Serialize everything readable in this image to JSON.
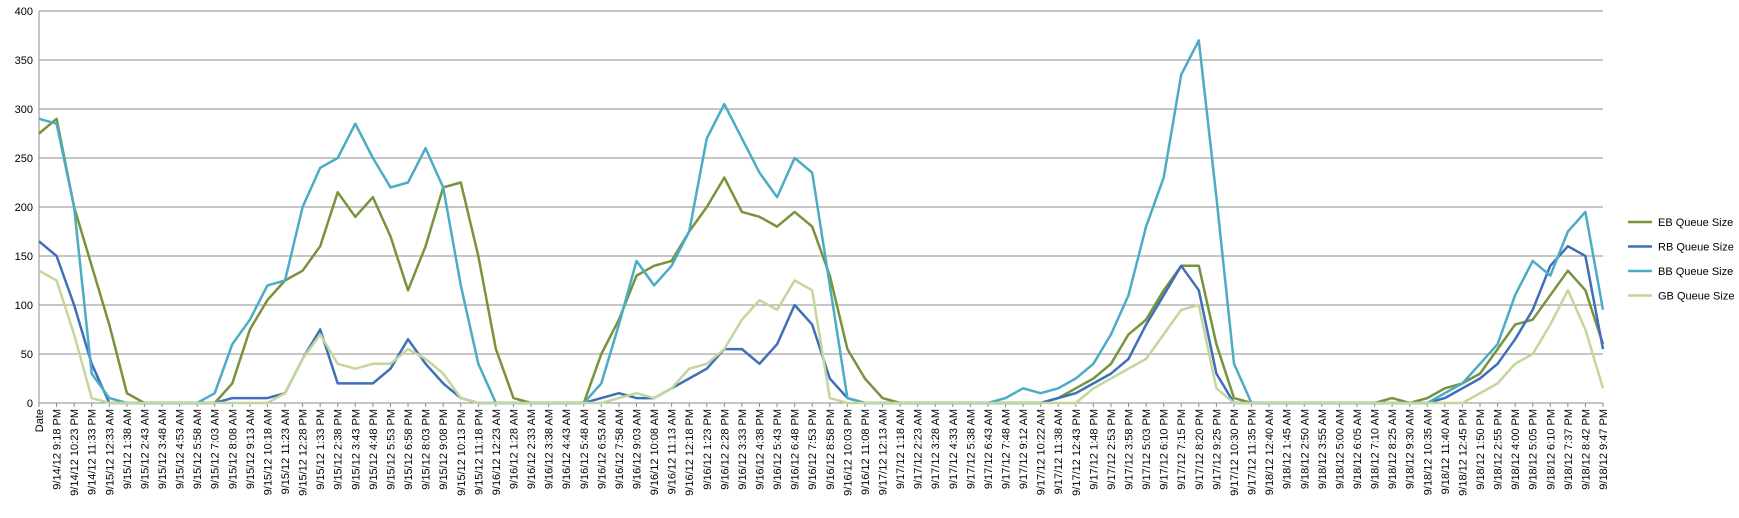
{
  "chart_data": {
    "type": "line",
    "categories": [
      "Date",
      "9/14/12 9:18 PM",
      "9/14/12 10:23 PM",
      "9/14/12 11:33 PM",
      "9/15/12 12:33 AM",
      "9/15/12 1:38 AM",
      "9/15/12 2:43 AM",
      "9/15/12 3:48 AM",
      "9/15/12 4:53 AM",
      "9/15/12 5:58 AM",
      "9/15/12 7:03 AM",
      "9/15/12 8:08 AM",
      "9/15/12 9:13 AM",
      "9/15/12 10:18 AM",
      "9/15/12 11:23 AM",
      "9/15/12 12:28 PM",
      "9/15/12 1:33 PM",
      "9/15/12 2:38 PM",
      "9/15/12 3:43 PM",
      "9/15/12 4:48 PM",
      "9/15/12 5:53 PM",
      "9/15/12 6:58 PM",
      "9/15/12 8:03 PM",
      "9/15/12 9:08 PM",
      "9/15/12 10:13 PM",
      "9/15/12 11:18 PM",
      "9/16/12 12:23 AM",
      "9/16/12 1:28 AM",
      "9/16/12 2:33 AM",
      "9/16/12 3:38 AM",
      "9/16/12 4:43 AM",
      "9/16/12 5:48 AM",
      "9/16/12 6:53 AM",
      "9/16/12 7:58 AM",
      "9/16/12 9:03 AM",
      "9/16/12 10:08 AM",
      "9/16/12 11:13 AM",
      "9/16/12 12:18 PM",
      "9/16/12 1:23 PM",
      "9/16/12 2:28 PM",
      "9/16/12 3:33 PM",
      "9/16/12 4:38 PM",
      "9/16/12 5:43 PM",
      "9/16/12 6:48 PM",
      "9/16/12 7:53 PM",
      "9/16/12 8:58 PM",
      "9/16/12 10:03 PM",
      "9/16/12 11:08 PM",
      "9/17/12 12:13 AM",
      "9/17/12 1:18 AM",
      "9/17/12 2:23 AM",
      "9/17/12 3:28 AM",
      "9/17/12 4:33 AM",
      "9/17/12 5:38 AM",
      "9/17/12 6:43 AM",
      "9/17/12 7:48 AM",
      "9/17/12 9:12 AM",
      "9/17/12 10:22 AM",
      "9/17/12 11:38 AM",
      "9/17/12 12:43 PM",
      "9/17/12 1:48 PM",
      "9/17/12 2:53 PM",
      "9/17/12 3:58 PM",
      "9/17/12 5:03 PM",
      "9/17/12 6:10 PM",
      "9/17/12 7:15 PM",
      "9/17/12 8:20 PM",
      "9/17/12 9:25 PM",
      "9/17/12 10:30 PM",
      "9/17/12 11:35 PM",
      "9/18/12 12:40 AM",
      "9/18/12 1:45 AM",
      "9/18/12 2:50 AM",
      "9/18/12 3:55 AM",
      "9/18/12 5:00 AM",
      "9/18/12 6:05 AM",
      "9/18/12 7:10 AM",
      "9/18/12 8:25 AM",
      "9/18/12 9:30 AM",
      "9/18/12 10:35 AM",
      "9/18/12 11:40 AM",
      "9/18/12 12:45 PM",
      "9/18/12 1:50 PM",
      "9/18/12 2:55 PM",
      "9/18/12 4:00 PM",
      "9/18/12 5:05 PM",
      "9/18/12 6:10 PM",
      "9/18/12 7:37 PM",
      "9/18/12 8:42 PM",
      "9/18/12 9:47 PM"
    ],
    "series": [
      {
        "name": "EB Queue Size",
        "color": "#77933c",
        "values": [
          275,
          290,
          200,
          140,
          80,
          10,
          0,
          0,
          0,
          0,
          0,
          20,
          75,
          105,
          125,
          135,
          160,
          215,
          190,
          210,
          170,
          115,
          160,
          220,
          225,
          150,
          55,
          5,
          0,
          0,
          0,
          0,
          50,
          85,
          130,
          140,
          145,
          175,
          200,
          230,
          195,
          190,
          180,
          195,
          180,
          130,
          55,
          25,
          5,
          0,
          0,
          0,
          0,
          0,
          0,
          0,
          0,
          0,
          5,
          15,
          25,
          40,
          70,
          85,
          115,
          140,
          140,
          60,
          5,
          0,
          0,
          0,
          0,
          0,
          0,
          0,
          0,
          5,
          0,
          5,
          15,
          20,
          30,
          55,
          80,
          85,
          110,
          135,
          115,
          60
        ]
      },
      {
        "name": "RB Queue Size",
        "color": "#3f6fb8",
        "values": [
          165,
          150,
          100,
          40,
          0,
          0,
          0,
          0,
          0,
          0,
          0,
          5,
          5,
          5,
          10,
          45,
          75,
          20,
          20,
          20,
          35,
          65,
          40,
          20,
          5,
          0,
          0,
          0,
          0,
          0,
          0,
          0,
          5,
          10,
          5,
          5,
          15,
          25,
          35,
          55,
          55,
          40,
          60,
          100,
          80,
          25,
          5,
          0,
          0,
          0,
          0,
          0,
          0,
          0,
          0,
          0,
          0,
          0,
          5,
          10,
          20,
          30,
          45,
          80,
          110,
          140,
          115,
          30,
          0,
          0,
          0,
          0,
          0,
          0,
          0,
          0,
          0,
          0,
          0,
          0,
          5,
          15,
          25,
          40,
          65,
          95,
          140,
          160,
          150,
          55
        ]
      },
      {
        "name": "BB Queue Size",
        "color": "#4bacc6",
        "values": [
          290,
          285,
          200,
          30,
          5,
          0,
          0,
          0,
          0,
          0,
          10,
          60,
          85,
          120,
          125,
          200,
          240,
          250,
          285,
          250,
          220,
          225,
          260,
          220,
          120,
          40,
          0,
          0,
          0,
          0,
          0,
          0,
          20,
          80,
          145,
          120,
          140,
          175,
          270,
          305,
          270,
          235,
          210,
          250,
          235,
          120,
          5,
          0,
          0,
          0,
          0,
          0,
          0,
          0,
          0,
          5,
          15,
          10,
          15,
          25,
          40,
          70,
          110,
          180,
          230,
          335,
          370,
          210,
          40,
          0,
          0,
          0,
          0,
          0,
          0,
          0,
          0,
          0,
          0,
          0,
          10,
          20,
          40,
          60,
          110,
          145,
          130,
          175,
          195,
          95
        ]
      },
      {
        "name": "GB Queue Size",
        "color": "#c3d69b",
        "values": [
          135,
          125,
          70,
          5,
          0,
          0,
          0,
          0,
          0,
          0,
          0,
          0,
          0,
          0,
          10,
          45,
          70,
          40,
          35,
          40,
          40,
          55,
          45,
          30,
          5,
          0,
          0,
          0,
          0,
          0,
          0,
          0,
          0,
          5,
          10,
          5,
          15,
          35,
          40,
          55,
          85,
          105,
          95,
          125,
          115,
          5,
          0,
          0,
          0,
          0,
          0,
          0,
          0,
          0,
          0,
          0,
          0,
          0,
          0,
          0,
          15,
          25,
          35,
          45,
          70,
          95,
          100,
          15,
          0,
          0,
          0,
          0,
          0,
          0,
          0,
          0,
          0,
          0,
          0,
          0,
          0,
          0,
          10,
          20,
          40,
          50,
          80,
          115,
          75,
          15
        ]
      }
    ],
    "ylim": [
      0,
      400
    ],
    "yticks": [
      0,
      50,
      100,
      150,
      200,
      250,
      300,
      350,
      400
    ],
    "grid": true,
    "legend": "right"
  }
}
